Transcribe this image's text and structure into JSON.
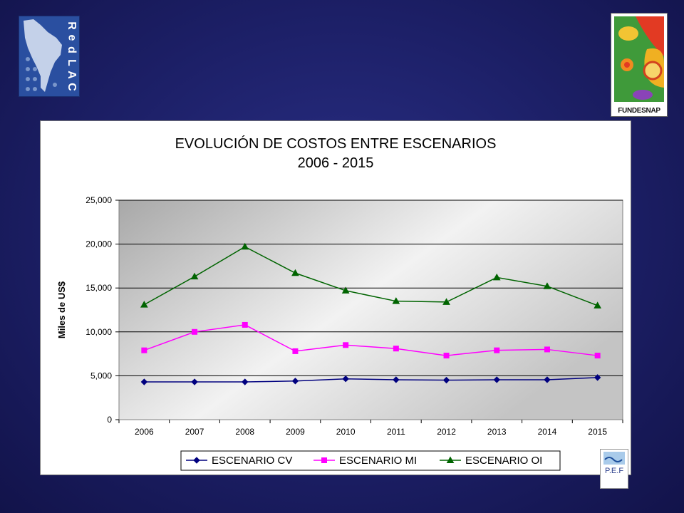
{
  "logos": {
    "redlac": {
      "letters": [
        "R",
        "e",
        "d",
        "L",
        "A",
        "C"
      ]
    },
    "fundesnap": {
      "caption": "FUNDESNAP"
    },
    "pef": {
      "caption": "P.E.F"
    }
  },
  "chart_data": {
    "type": "line",
    "title_lines": [
      "EVOLUCIÓN DE COSTOS ENTRE ESCENARIOS",
      "2006 - 2015"
    ],
    "xlabel": "",
    "ylabel": "Miles de US$",
    "categories": [
      "2006",
      "2007",
      "2008",
      "2009",
      "2010",
      "2011",
      "2012",
      "2013",
      "2014",
      "2015"
    ],
    "ylim": [
      0,
      25000
    ],
    "yticks": [
      0,
      5000,
      10000,
      15000,
      20000,
      25000
    ],
    "ytick_labels": [
      "0",
      "5,000",
      "10,000",
      "15,000",
      "20,000",
      "25,000"
    ],
    "grid": true,
    "legend_position": "bottom",
    "series": [
      {
        "name": "ESCENARIO CV",
        "color": "#00007f",
        "marker": "diamond",
        "values": [
          4300,
          4300,
          4300,
          4400,
          4650,
          4550,
          4500,
          4550,
          4550,
          4800
        ]
      },
      {
        "name": "ESCENARIO MI",
        "color": "#ff00ff",
        "marker": "square",
        "values": [
          7900,
          10000,
          10800,
          7800,
          8500,
          8100,
          7300,
          7900,
          8000,
          7300
        ]
      },
      {
        "name": "ESCENARIO OI",
        "color": "#006400",
        "marker": "triangle",
        "values": [
          13100,
          16300,
          19700,
          16700,
          14700,
          13500,
          13400,
          16200,
          15200,
          13000
        ]
      }
    ]
  }
}
